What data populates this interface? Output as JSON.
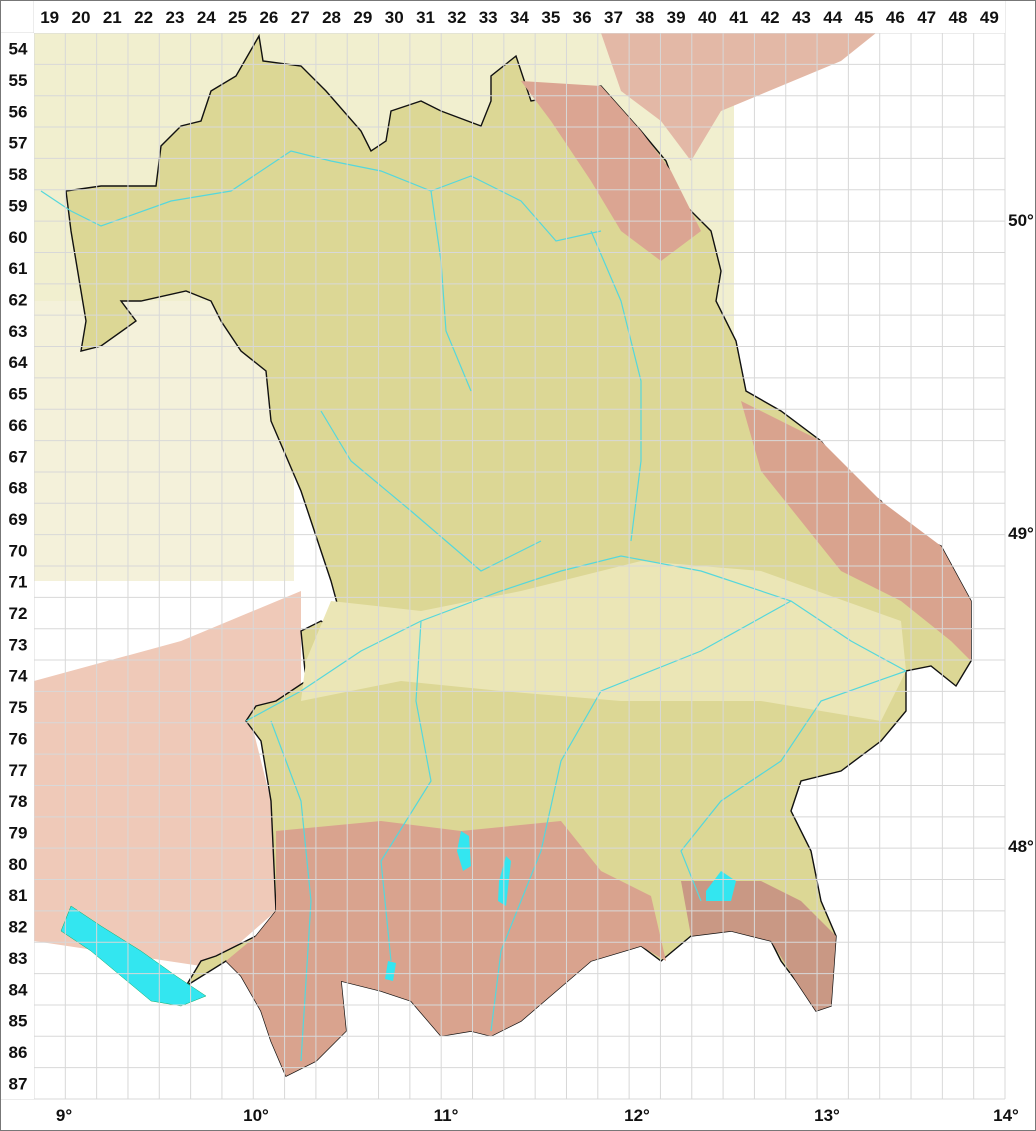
{
  "map": {
    "grid_columns": [
      "19",
      "20",
      "21",
      "22",
      "23",
      "24",
      "25",
      "26",
      "27",
      "28",
      "29",
      "30",
      "31",
      "32",
      "33",
      "34",
      "35",
      "36",
      "37",
      "38",
      "39",
      "40",
      "41",
      "42",
      "43",
      "44",
      "45",
      "46",
      "47",
      "48",
      "49"
    ],
    "grid_rows": [
      "54",
      "55",
      "56",
      "57",
      "58",
      "59",
      "60",
      "61",
      "62",
      "63",
      "64",
      "65",
      "66",
      "67",
      "68",
      "69",
      "70",
      "71",
      "72",
      "73",
      "74",
      "75",
      "76",
      "77",
      "78",
      "79",
      "80",
      "81",
      "82",
      "83",
      "84",
      "85",
      "86",
      "87"
    ],
    "latitude_labels": [
      "50°",
      "49°",
      "48°"
    ],
    "longitude_labels": [
      "9°",
      "10°",
      "11°",
      "12°",
      "13°",
      "14°"
    ],
    "colors": {
      "lowland": "#e6e2a8",
      "hills": "#cfcd86",
      "mountains": "#d9a38e",
      "outside_north": "#f1efcf",
      "outside_southwest": "#eec5b4",
      "water": "#33e6f0",
      "rivers": "#55d7dc",
      "border": "#111111",
      "grid": "#dddddd"
    }
  }
}
